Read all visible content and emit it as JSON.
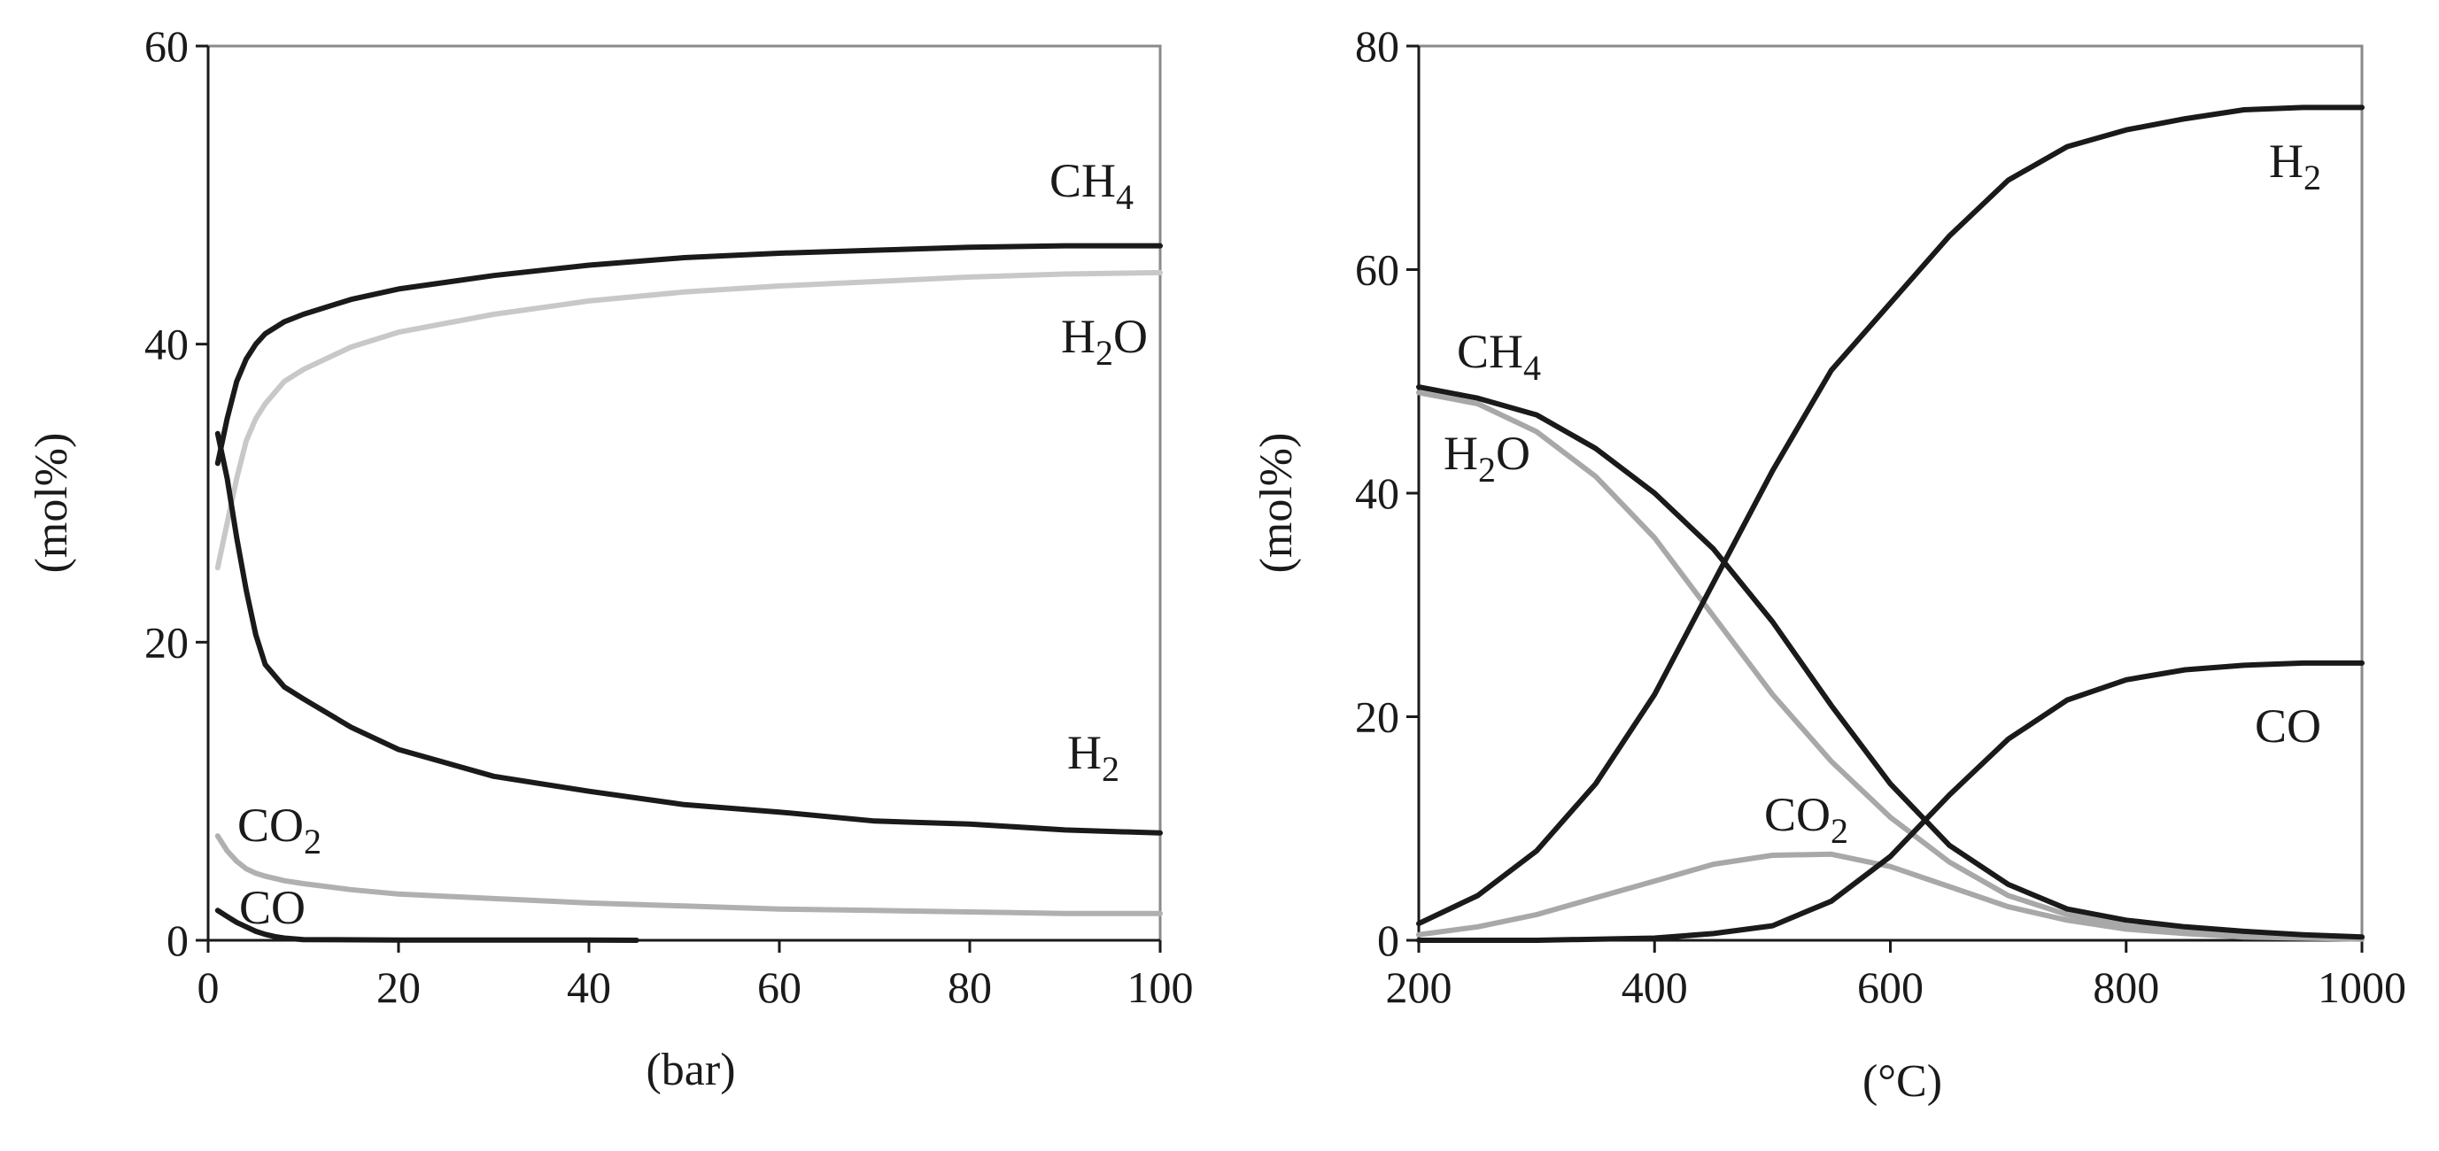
{
  "chart_data": [
    {
      "type": "line",
      "title": "",
      "xlabel": "(bar)",
      "ylabel": "(mol%)",
      "xlim": [
        0,
        100
      ],
      "ylim": [
        0,
        60
      ],
      "xticks": [
        0,
        20,
        40,
        60,
        80,
        100
      ],
      "yticks": [
        0,
        20,
        40,
        60
      ],
      "grid": false,
      "series": [
        {
          "name": "CH4",
          "label_main": "CH",
          "label_sub": "4",
          "color": "#1a1a1a",
          "x": [
            1,
            2,
            3,
            4,
            5,
            6,
            8,
            10,
            15,
            20,
            30,
            40,
            50,
            60,
            70,
            80,
            90,
            100
          ],
          "y": [
            32,
            35,
            37.5,
            39,
            40,
            40.7,
            41.5,
            42,
            43,
            43.7,
            44.6,
            45.3,
            45.8,
            46.1,
            46.3,
            46.5,
            46.6,
            46.6
          ]
        },
        {
          "name": "H2O",
          "label_main": "H",
          "label_sub": "2",
          "label_tail": "O",
          "color": "#c8c8c8",
          "x": [
            1,
            2,
            3,
            4,
            5,
            6,
            8,
            10,
            15,
            20,
            30,
            40,
            50,
            60,
            70,
            80,
            90,
            100
          ],
          "y": [
            25,
            28,
            31,
            33.5,
            35,
            36,
            37.5,
            38.3,
            39.8,
            40.8,
            42,
            42.9,
            43.5,
            43.9,
            44.2,
            44.5,
            44.7,
            44.8
          ]
        },
        {
          "name": "H2",
          "label_main": "H",
          "label_sub": "2",
          "color": "#1a1a1a",
          "x": [
            1,
            2,
            3,
            4,
            5,
            6,
            8,
            10,
            15,
            20,
            30,
            40,
            50,
            60,
            70,
            80,
            90,
            100
          ],
          "y": [
            34,
            31,
            27,
            23.5,
            20.5,
            18.5,
            17,
            16.2,
            14.3,
            12.8,
            11,
            10,
            9.1,
            8.6,
            8,
            7.8,
            7.4,
            7.2
          ]
        },
        {
          "name": "CO2",
          "label_main": "CO",
          "label_sub": "2",
          "color": "#b0b0b0",
          "x": [
            1,
            2,
            3,
            4,
            5,
            6,
            8,
            10,
            15,
            20,
            30,
            40,
            50,
            60,
            70,
            80,
            90,
            100
          ],
          "y": [
            7,
            6,
            5.3,
            4.8,
            4.5,
            4.3,
            4,
            3.8,
            3.4,
            3.1,
            2.8,
            2.5,
            2.3,
            2.1,
            2,
            1.9,
            1.8,
            1.8
          ]
        },
        {
          "name": "CO",
          "label_main": "CO",
          "label_sub": "",
          "color": "#1a1a1a",
          "x": [
            1,
            2,
            3,
            4,
            5,
            6,
            7,
            8,
            10,
            20,
            40,
            45
          ],
          "y": [
            2,
            1.6,
            1.2,
            0.9,
            0.6,
            0.4,
            0.25,
            0.15,
            0.05,
            0.02,
            0.02,
            0
          ]
        }
      ]
    },
    {
      "type": "line",
      "title": "",
      "xlabel": "(°C)",
      "ylabel": "(mol%)",
      "xlim": [
        200,
        1000
      ],
      "ylim": [
        0,
        80
      ],
      "xticks": [
        200,
        400,
        600,
        800,
        1000
      ],
      "yticks": [
        0,
        20,
        40,
        60,
        80
      ],
      "grid": false,
      "series": [
        {
          "name": "H2",
          "label_main": "H",
          "label_sub": "2",
          "color": "#1a1a1a",
          "x": [
            200,
            250,
            300,
            350,
            400,
            450,
            500,
            550,
            600,
            650,
            700,
            750,
            800,
            850,
            900,
            950,
            1000
          ],
          "y": [
            1.5,
            4,
            8,
            14,
            22,
            32,
            42,
            51,
            57,
            63,
            68,
            71,
            72.5,
            73.5,
            74.3,
            74.5,
            74.5
          ]
        },
        {
          "name": "CH4",
          "label_main": "CH",
          "label_sub": "4",
          "color": "#1a1a1a",
          "x": [
            200,
            250,
            300,
            350,
            400,
            450,
            500,
            550,
            600,
            650,
            700,
            750,
            800,
            850,
            900,
            950,
            1000
          ],
          "y": [
            49.5,
            48.5,
            47,
            44,
            40,
            35,
            28.5,
            21,
            14,
            8.5,
            5,
            2.8,
            1.8,
            1.2,
            0.8,
            0.5,
            0.3
          ]
        },
        {
          "name": "H2O",
          "label_main": "H",
          "label_sub": "2",
          "label_tail": "O",
          "color": "#a8a8a8",
          "x": [
            200,
            250,
            300,
            350,
            400,
            450,
            500,
            550,
            600,
            650,
            700,
            750,
            800,
            850,
            900,
            950,
            1000
          ],
          "y": [
            49,
            48,
            45.5,
            41.5,
            36,
            29,
            22,
            16,
            11,
            7,
            4,
            2.3,
            1.3,
            0.8,
            0.5,
            0.3,
            0.2
          ]
        },
        {
          "name": "CO",
          "label_main": "CO",
          "label_sub": "",
          "color": "#1a1a1a",
          "x": [
            200,
            300,
            400,
            450,
            500,
            550,
            600,
            650,
            700,
            750,
            800,
            850,
            900,
            950,
            1000
          ],
          "y": [
            0,
            0,
            0.2,
            0.6,
            1.3,
            3.5,
            7.5,
            13,
            18,
            21.5,
            23.3,
            24.2,
            24.6,
            24.8,
            24.8
          ]
        },
        {
          "name": "CO2",
          "label_main": "CO",
          "label_sub": "2",
          "color": "#a8a8a8",
          "x": [
            200,
            250,
            300,
            350,
            400,
            450,
            500,
            550,
            600,
            650,
            700,
            750,
            800,
            850,
            900,
            950,
            1000
          ],
          "y": [
            0.5,
            1.2,
            2.3,
            3.8,
            5.3,
            6.8,
            7.6,
            7.7,
            6.6,
            4.8,
            3,
            1.8,
            1,
            0.6,
            0.3,
            0.2,
            0.1
          ]
        }
      ]
    }
  ]
}
